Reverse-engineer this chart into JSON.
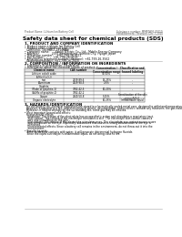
{
  "title": "Safety data sheet for chemical products (SDS)",
  "header_left": "Product Name: Lithium Ion Battery Cell",
  "header_right_line1": "Substance number: MMBTA05-00010",
  "header_right_line2": "Establishment / Revision: Dec.7.2010",
  "background_color": "#ffffff",
  "text_color": "#000000",
  "section1_title": "1. PRODUCT AND COMPANY IDENTIFICATION",
  "section1_lines": [
    "• Product name: Lithium Ion Battery Cell",
    "• Product code: Cylindrical-type cell",
    "  (18650SU, 18168BU, 18148BA)",
    "• Company name:      Sanyo Electric Co., Ltd., Mobile Energy Company",
    "• Address:              2001 Kamimakusa, Sumoto-City, Hyogo, Japan",
    "• Telephone number:    +81-799-26-4111",
    "• Fax number:          +81-799-26-4123",
    "• Emergency telephone number (daytime): +81-799-26-3562",
    "  (Night and holiday): +81-799-26-2120"
  ],
  "section2_title": "2. COMPOSITION / INFORMATION ON INGREDIENTS",
  "section2_lines": [
    "• Substance or preparation: Preparation",
    "• Information about the chemical nature of product:"
  ],
  "table_headers": [
    "Chemical name",
    "CAS number",
    "Concentration /\nConcentration range",
    "Classification and\nhazard labeling"
  ],
  "table_col_header": "Component",
  "table_rows": [
    [
      "Lithium cobalt oxide",
      "-",
      "30-50%",
      ""
    ],
    [
      "(LiMn³(CoO₂))",
      "",
      "",
      ""
    ],
    [
      "Iron",
      "7439-89-6",
      "15-25%",
      "-"
    ],
    [
      "Aluminium",
      "7429-90-5",
      "2-5%",
      "-"
    ],
    [
      "Graphite",
      "",
      "",
      ""
    ],
    [
      "(Flake of graphite-1)",
      "7782-42-5",
      "10-20%",
      "-"
    ],
    [
      "(Al-Mo of graphite-1)",
      "7782-42-2",
      "",
      ""
    ],
    [
      "Copper",
      "7440-50-8",
      "5-15%",
      "Sensitization of the skin\ngroup R43.2"
    ],
    [
      "Organic electrolyte",
      "-",
      "10-25%",
      "Inflammable liquid"
    ]
  ],
  "section3_title": "3. HAZARDS IDENTIFICATION",
  "section3_para1": "  For the battery cell, chemical substances are stored in a hermetically sealed metal case, designed to withstand temperatures from -20 to 60°C(storage conditions) during normal use. As a result, during normal use, there is no physical danger of ignition or explosion and there is no danger of hazardous materials leakage.",
  "section3_para2": "  However, if exposed to a fire, added mechanical shocks, decomposition, and/or electric without any measures, the gas inside cannot be operated. The battery cell case will be breached of the potential, hazardous materials may be released.",
  "section3_para3": "  Moreover, if heated strongly by the surrounding fire, some gas may be emitted.",
  "section3_bullet1_title": "• Most important hazard and effects:",
  "section3_bullet1_lines": [
    "  Human health effects:",
    "    Inhalation: The release of the electrolyte has an anesthetic action and stimulates a respiratory tract.",
    "    Skin contact: The release of the electrolyte stimulates a skin. The electrolyte skin contact causes a",
    "    sore and stimulation on the skin.",
    "    Eye contact: The release of the electrolyte stimulates eyes. The electrolyte eye contact causes a sore",
    "    and stimulation on the eye. Especially, substances that causes a strong inflammation of the eye is",
    "    contained.",
    "    Environmental effects: Since a battery cell remains in the environment, do not throw out it into the",
    "    environment."
  ],
  "section3_bullet2_title": "• Specific hazards:",
  "section3_bullet2_lines": [
    "   If the electrolyte contacts with water, it will generate detrimental hydrogen fluoride.",
    "   Since the liquid electrolyte is inflammable liquid, do not bring close to fire."
  ],
  "footer_line": true
}
